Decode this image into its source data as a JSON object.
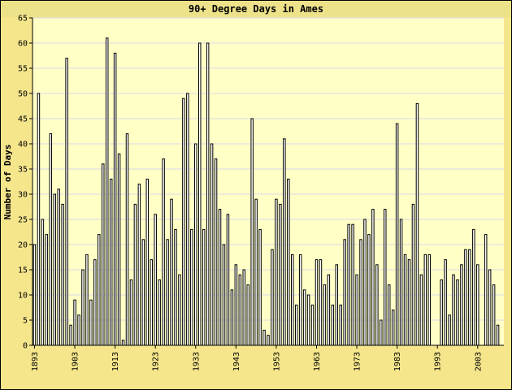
{
  "chart_data": {
    "type": "bar",
    "title": "90+ Degree Days in Ames",
    "xlabel": "",
    "ylabel": "Number of Days",
    "ylim": [
      0,
      65
    ],
    "yticks": [
      0,
      5,
      10,
      15,
      20,
      25,
      30,
      35,
      40,
      45,
      50,
      55,
      60,
      65
    ],
    "xtick_labels": [
      "1893",
      "1903",
      "1913",
      "1923",
      "1933",
      "1943",
      "1953",
      "1963",
      "1973",
      "1983",
      "1993",
      "2003"
    ],
    "grid": true,
    "colors": {
      "outer_bg": "#f5e68c",
      "title_band": "#ede28a",
      "plot_bg": "#ffffc6",
      "grid": "#d8d8e8",
      "bar_fill": "#ffffff",
      "bar_stroke": "#000000"
    },
    "categories": [
      "1893",
      "1894",
      "1895",
      "1896",
      "1897",
      "1898",
      "1899",
      "1900",
      "1901",
      "1902",
      "1903",
      "1904",
      "1905",
      "1906",
      "1907",
      "1908",
      "1909",
      "1910",
      "1911",
      "1912",
      "1913",
      "1914",
      "1915",
      "1916",
      "1917",
      "1918",
      "1919",
      "1920",
      "1921",
      "1922",
      "1923",
      "1924",
      "1925",
      "1926",
      "1927",
      "1928",
      "1929",
      "1930",
      "1931",
      "1932",
      "1933",
      "1934",
      "1935",
      "1936",
      "1937",
      "1938",
      "1939",
      "1940",
      "1941",
      "1942",
      "1943",
      "1944",
      "1945",
      "1946",
      "1947",
      "1948",
      "1949",
      "1950",
      "1951",
      "1952",
      "1953",
      "1954",
      "1955",
      "1956",
      "1957",
      "1958",
      "1959",
      "1960",
      "1961",
      "1962",
      "1963",
      "1964",
      "1965",
      "1966",
      "1967",
      "1968",
      "1969",
      "1970",
      "1971",
      "1972",
      "1973",
      "1974",
      "1975",
      "1976",
      "1977",
      "1978",
      "1979",
      "1980",
      "1981",
      "1982",
      "1983",
      "1984",
      "1985",
      "1986",
      "1987",
      "1988",
      "1989",
      "1990",
      "1991",
      "1992",
      "1993",
      "1994",
      "1995",
      "1996",
      "1997",
      "1998",
      "1999",
      "2000",
      "2001",
      "2002",
      "2003",
      "2004",
      "2005",
      "2006",
      "2007",
      "2008",
      "2009"
    ],
    "values": [
      20,
      50,
      25,
      22,
      42,
      30,
      31,
      28,
      57,
      4,
      9,
      6,
      15,
      18,
      9,
      17,
      22,
      36,
      61,
      33,
      58,
      38,
      1,
      42,
      13,
      28,
      32,
      21,
      33,
      17,
      26,
      13,
      37,
      21,
      29,
      23,
      14,
      49,
      50,
      23,
      40,
      60,
      23,
      60,
      40,
      37,
      27,
      20,
      26,
      11,
      16,
      14,
      15,
      12,
      45,
      29,
      23,
      3,
      2,
      19,
      29,
      28,
      41,
      33,
      18,
      8,
      18,
      11,
      10,
      8,
      17,
      17,
      12,
      14,
      8,
      16,
      8,
      21,
      24,
      24,
      14,
      21,
      25,
      22,
      27,
      16,
      5,
      27,
      12,
      7,
      44,
      25,
      18,
      17,
      28,
      48,
      14,
      18,
      18,
      0,
      0,
      13,
      17,
      6,
      14,
      13,
      16,
      19,
      19,
      23,
      16,
      0,
      22,
      15,
      12,
      4,
      0
    ]
  }
}
